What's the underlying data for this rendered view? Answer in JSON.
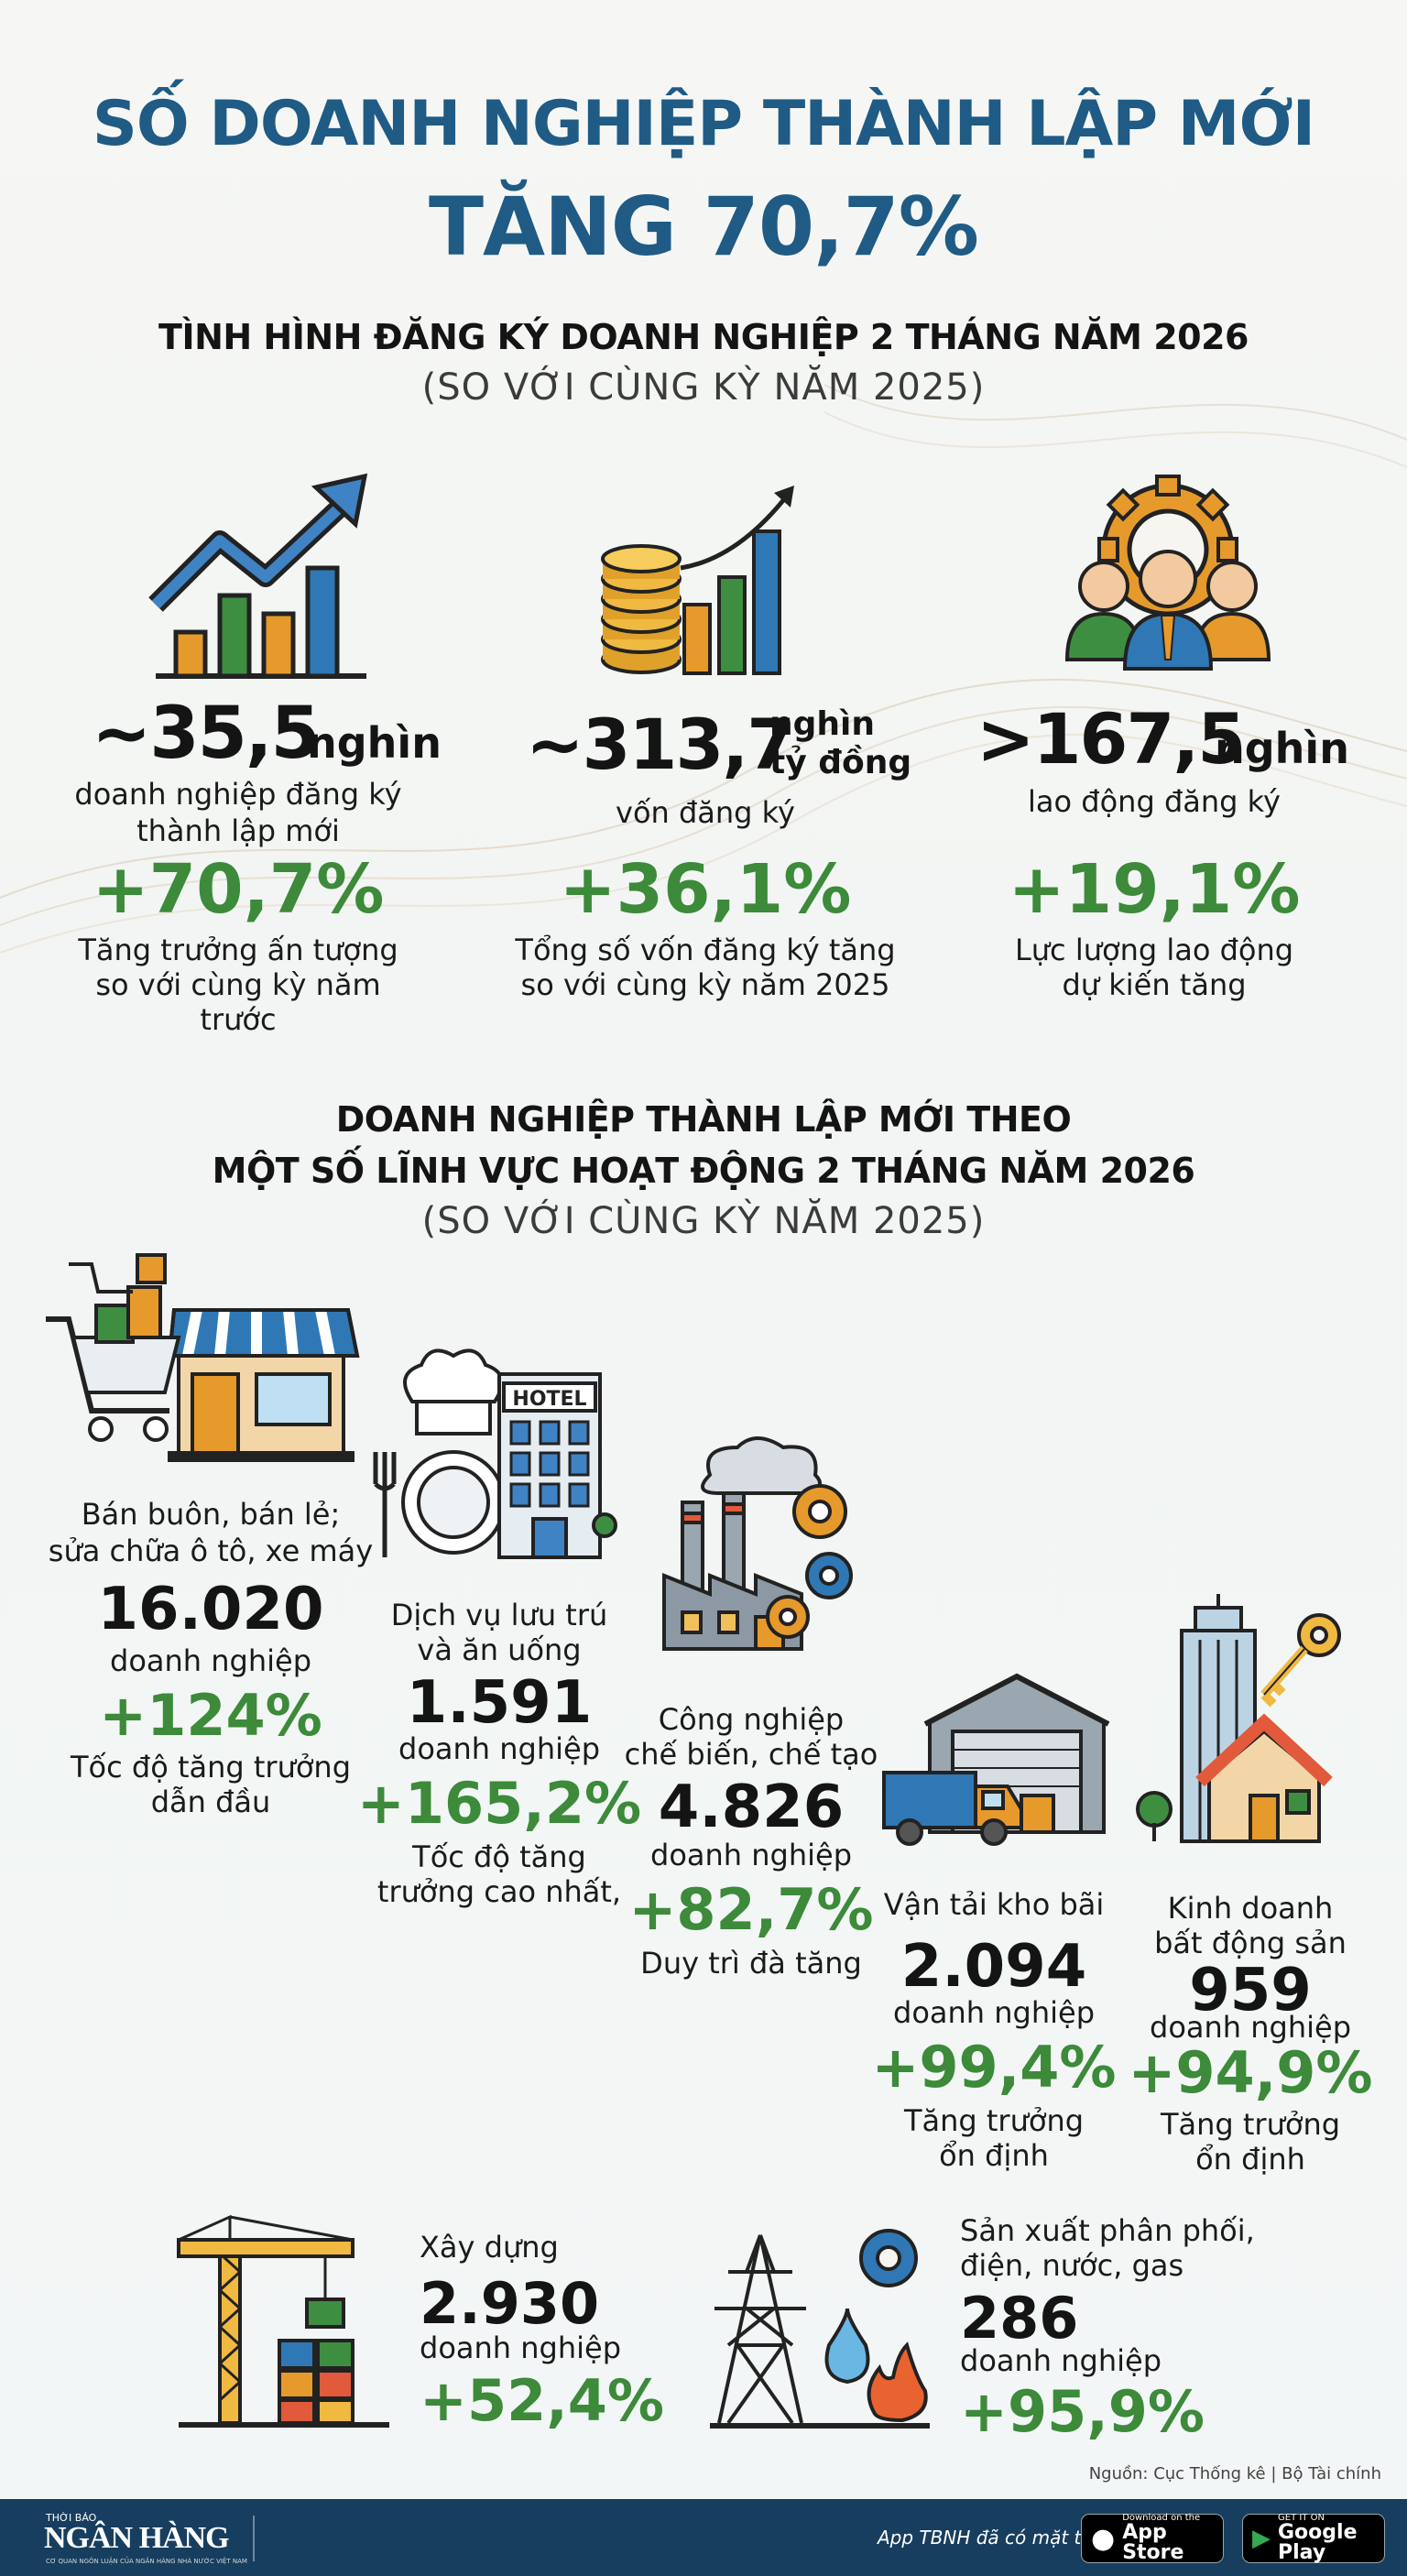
{
  "header": {
    "title_line1": "SỐ DOANH NGHIỆP THÀNH LẬP MỚI",
    "title_line2": "TĂNG 70,7%"
  },
  "section1": {
    "heading": "TÌNH HÌNH ĐĂNG KÝ DOANH NGHIỆP 2 THÁNG NĂM 2026",
    "subheading": "(SO VỚI CÙNG KỲ NĂM 2025)",
    "stats": [
      {
        "icon": "growth-chart-icon",
        "value": "~35,5",
        "unit": "nghìn",
        "label_line1": "doanh nghiệp đăng ký",
        "label_line2": "thành lập mới",
        "change": "+70,7%",
        "note_line1": "Tăng trưởng ấn tượng",
        "note_line2": "so với cùng kỳ năm trước"
      },
      {
        "icon": "coins-chart-icon",
        "value": "~313,7",
        "unit_line1": "nghìn",
        "unit_line2": "tỷ đồng",
        "label_line1": "vốn đăng ký",
        "change": "+36,1%",
        "note_line1": "Tổng số vốn đăng ký tăng",
        "note_line2": "so với cùng kỳ năm 2025"
      },
      {
        "icon": "workforce-gear-icon",
        "value": ">167,5",
        "unit": "nghìn",
        "label_line1": "lao động đăng ký",
        "change": "+19,1%",
        "note_line1": "Lực lượng lao động",
        "note_line2": "dự kiến tăng"
      }
    ]
  },
  "section2": {
    "heading_line1": "DOANH NGHIỆP THÀNH LẬP MỚI THEO",
    "heading_line2": "MỘT SỐ LĨNH VỰC HOẠT ĐỘNG 2 THÁNG NĂM 2026",
    "subheading": "(SO VỚI CÙNG KỲ NĂM 2025)",
    "sectors": {
      "retail": {
        "icon": "shopping-store-icon",
        "name_line1": "Bán buôn, bán lẻ;",
        "name_line2": "sửa chữa ô tô, xe máy",
        "count": "16.020",
        "unit": "doanh nghiệp",
        "change": "+124%",
        "note_line1": "Tốc độ tăng trưởng",
        "note_line2": "dẫn đầu"
      },
      "hospitality": {
        "icon": "hotel-restaurant-icon",
        "hotel_sign": "HOTEL",
        "name_line1": "Dịch vụ lưu trú",
        "name_line2": "và ăn uống",
        "count": "1.591",
        "unit": "doanh nghiệp",
        "change": "+165,2%",
        "note_line1": "Tốc độ tăng",
        "note_line2": "trưởng cao nhất,"
      },
      "manufacturing": {
        "icon": "factory-icon",
        "name_line1": "Công nghiệp",
        "name_line2": "chế biến, chế tạo",
        "count": "4.826",
        "unit": "doanh nghiệp",
        "change": "+82,7%",
        "note_line1": "Duy trì đà tăng"
      },
      "logistics": {
        "icon": "warehouse-truck-icon",
        "name_line1": "Vận tải kho bãi",
        "count": "2.094",
        "unit": "doanh nghiệp",
        "change": "+99,4%",
        "note_line1": "Tăng trưởng",
        "note_line2": "ổn định"
      },
      "realestate": {
        "icon": "real-estate-icon",
        "name_line1": "Kinh doanh",
        "name_line2": "bất động sản",
        "count": "959",
        "unit": "doanh nghiệp",
        "change": "+94,9%",
        "note_line1": "Tăng trưởng",
        "note_line2": "ổn định"
      },
      "construction": {
        "icon": "crane-icon",
        "name_line1": "Xây dựng",
        "count": "2.930",
        "unit": "doanh nghiệp",
        "change": "+52,4%"
      },
      "utilities": {
        "icon": "power-utility-icon",
        "name_line1": "Sản xuất phân phối,",
        "name_line2": "điện, nước, gas",
        "count": "286",
        "unit": "doanh nghiệp",
        "change": "+95,9%"
      }
    }
  },
  "source": "Nguồn: Cục Thống kê | Bộ Tài chính",
  "footer": {
    "brand_top": "THỜI BÁO",
    "brand": "NGÂN HÀNG",
    "brand_tagline": "CƠ QUAN NGÔN LUẬN CỦA NGÂN HÀNG NHÀ NƯỚC VIỆT NAM",
    "app_text": "App TBNH đã có mặt trên",
    "appstore_small": "Download on the",
    "appstore_big": "App Store",
    "googleplay_small": "GET IT ON",
    "googleplay_big": "Google Play"
  },
  "colors": {
    "title_blue": "#1f5b85",
    "green": "#3c8a3a",
    "footer_bg": "#173e5e"
  }
}
